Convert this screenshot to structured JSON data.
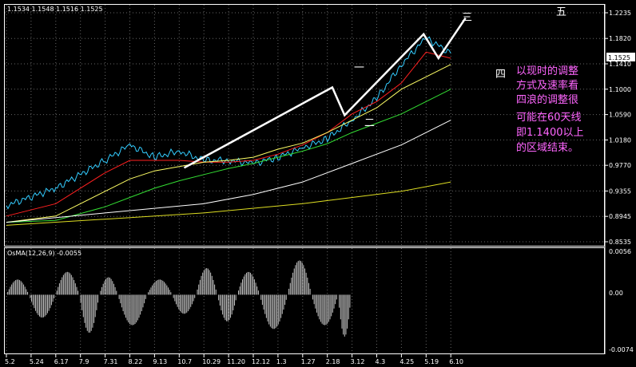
{
  "header": {
    "ohlc": "1.1534 1.1548 1.1516 1.1525"
  },
  "price_labels": [
    "1.2235",
    "1.1820",
    "1.1410",
    "1.1000",
    "1.0590",
    "1.0180",
    "0.9770",
    "0.9355",
    "0.8945",
    "0.8535"
  ],
  "last_price": "1.1525",
  "indicator": {
    "title": "OsMA(12,26,9) -0.0055",
    "labels": [
      "0.0056",
      "0.00",
      "-0.0074"
    ]
  },
  "x_labels": [
    "5.2",
    "5.24",
    "6.17",
    "7.9",
    "7.31",
    "8.22",
    "9.13",
    "10.7",
    "10.29",
    "11.20",
    "12.12",
    "1.3",
    "1.27",
    "2.18",
    "3.12",
    "4.3",
    "4.25",
    "5.19",
    "6.10"
  ],
  "wave_labels": [
    "一",
    "二",
    "三",
    "四",
    "五"
  ],
  "annotation": [
    "以现时的调整",
    "方式及速率看",
    "四浪的调整很",
    "可能在60天线",
    "即1.1400以上",
    "的区域结束。"
  ],
  "colors": {
    "price": "#33ccff",
    "ma_red": "#ff2020",
    "ma_yellow": "#ffff66",
    "ma_green": "#33dd33",
    "ma_white": "#ffffff",
    "ma_olive": "#dddd22",
    "osma": "#c0c0c0",
    "annotation": "#ff66ff"
  },
  "chart_data": [
    {
      "type": "line",
      "x_ticks": [
        "5.2",
        "5.24",
        "6.17",
        "7.9",
        "7.31",
        "8.22",
        "9.13",
        "10.7",
        "10.29",
        "11.20",
        "12.12",
        "1.3",
        "1.27",
        "2.18",
        "3.12",
        "4.3",
        "4.25",
        "5.19",
        "6.10"
      ],
      "ylim": [
        0.8535,
        1.2235
      ],
      "y_ticks": [
        1.2235,
        1.182,
        1.141,
        1.1,
        1.059,
        1.018,
        0.977,
        0.9355,
        0.8945,
        0.8535
      ],
      "grid": true,
      "series": [
        {
          "points": [
            [
              0,
              0.912
            ],
            [
              2,
              0.94
            ],
            [
              4,
              0.985
            ],
            [
              5,
              1.01
            ],
            [
              6,
              0.99
            ],
            [
              7,
              1.0
            ],
            [
              8,
              0.985
            ],
            [
              9,
              0.985
            ],
            [
              10,
              0.98
            ],
            [
              11,
              0.99
            ],
            [
              12,
              1.005
            ],
            [
              13,
              1.02
            ],
            [
              14,
              1.05
            ],
            [
              15,
              1.085
            ],
            [
              16,
              1.14
            ],
            [
              17,
              1.183
            ],
            [
              18,
              1.158
            ]
          ]
        },
        {
          "points": [
            [
              0,
              0.895
            ],
            [
              2,
              0.915
            ],
            [
              4,
              0.965
            ],
            [
              5,
              0.985
            ],
            [
              6,
              0.985
            ],
            [
              7,
              0.985
            ],
            [
              8,
              0.982
            ],
            [
              9,
              0.982
            ],
            [
              10,
              0.985
            ],
            [
              11,
              0.995
            ],
            [
              12,
              1.01
            ],
            [
              13,
              1.03
            ],
            [
              14,
              1.06
            ],
            [
              15,
              1.08
            ],
            [
              16,
              1.11
            ],
            [
              17,
              1.16
            ],
            [
              18,
              1.15
            ]
          ]
        },
        {
          "points": [
            [
              0,
              0.885
            ],
            [
              2,
              0.895
            ],
            [
              4,
              0.935
            ],
            [
              5,
              0.955
            ],
            [
              6,
              0.968
            ],
            [
              7,
              0.975
            ],
            [
              8,
              0.982
            ],
            [
              9,
              0.985
            ],
            [
              10,
              0.99
            ],
            [
              11,
              1.003
            ],
            [
              12,
              1.013
            ],
            [
              13,
              1.03
            ],
            [
              14,
              1.05
            ],
            [
              15,
              1.07
            ],
            [
              16,
              1.1
            ],
            [
              17,
              1.12
            ],
            [
              18,
              1.14
            ]
          ]
        },
        {
          "points": [
            [
              0,
              0.885
            ],
            [
              2,
              0.888
            ],
            [
              4,
              0.91
            ],
            [
              5,
              0.925
            ],
            [
              6,
              0.94
            ],
            [
              7,
              0.952
            ],
            [
              8,
              0.962
            ],
            [
              9,
              0.972
            ],
            [
              10,
              0.98
            ],
            [
              11,
              0.99
            ],
            [
              12,
              1.0
            ],
            [
              13,
              1.012
            ],
            [
              14,
              1.03
            ],
            [
              15,
              1.045
            ],
            [
              16,
              1.06
            ],
            [
              17,
              1.08
            ],
            [
              18,
              1.1
            ]
          ]
        },
        {
          "points": [
            [
              0,
              0.885
            ],
            [
              4,
              0.9
            ],
            [
              8,
              0.915
            ],
            [
              10,
              0.93
            ],
            [
              12,
              0.95
            ],
            [
              14,
              0.98
            ],
            [
              16,
              1.01
            ],
            [
              18,
              1.05
            ]
          ]
        },
        {
          "points": [
            [
              0,
              0.88
            ],
            [
              4,
              0.89
            ],
            [
              8,
              0.9
            ],
            [
              12,
              0.915
            ],
            [
              16,
              0.935
            ],
            [
              18,
              0.95
            ]
          ]
        },
        {
          "points": [
            [
              7.2,
              0.973
            ],
            [
              13.2,
              1.103
            ],
            [
              13.7,
              1.058
            ],
            [
              16.9,
              1.189
            ],
            [
              17.5,
              1.15
            ],
            [
              18.6,
              1.215
            ]
          ]
        }
      ]
    },
    {
      "type": "bar",
      "title": "OsMA(12,26,9) -0.0055",
      "ylim": [
        -0.0074,
        0.0056
      ],
      "x_ticks": [
        "5.2",
        "5.24",
        "6.17",
        "7.9",
        "7.31",
        "8.22",
        "9.13",
        "10.7",
        "10.29",
        "11.20",
        "12.12",
        "1.3",
        "1.27",
        "2.18",
        "3.12",
        "4.3",
        "4.25",
        "5.19",
        "6.10"
      ],
      "wave_periods": [
        34,
        40,
        36,
        30,
        28,
        44,
        38,
        36,
        32,
        30,
        34,
        42,
        36,
        40,
        20
      ],
      "wave_amplitudes": [
        0.002,
        -0.003,
        0.003,
        -0.005,
        0.0023,
        -0.004,
        0.002,
        -0.0025,
        0.0035,
        -0.0035,
        0.003,
        -0.0045,
        0.0045,
        -0.004,
        -0.0055
      ]
    }
  ]
}
